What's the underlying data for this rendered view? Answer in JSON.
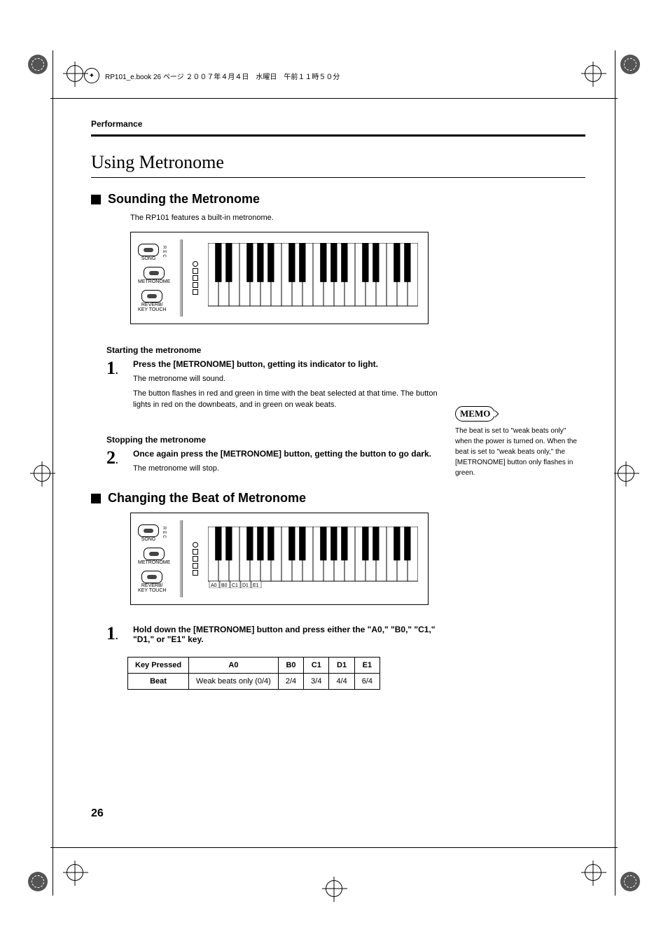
{
  "page": {
    "header_info": "RP101_e.book 26 ページ ２００７年４月４日　水曜日　午前１１時５０分",
    "running_head": "Performance",
    "page_number": "26"
  },
  "h1": "Using Metronome",
  "sect1": {
    "title": "Sounding the Metronome",
    "intro": "The RP101 features a built-in metronome.",
    "panel": {
      "btn1": "SONG",
      "btn2": "METRONOME",
      "btn3": "REVERB/\nKEY TOUCH",
      "rec": "REC"
    },
    "start_heading": "Starting the metronome",
    "step1": {
      "num": "1",
      "instruction": "Press the [METRONOME] button, getting its indicator to light.",
      "text1": "The metronome will sound.",
      "text2": "The button flashes in red and green in time with the beat selected at that time. The button lights in red on the downbeats, and in green on weak beats."
    },
    "stop_heading": "Stopping the metronome",
    "step2": {
      "num": "2",
      "instruction": "Once again press the [METRONOME] button, getting the button to go dark.",
      "text1": "The metronome will stop."
    }
  },
  "memo": {
    "label": "MEMO",
    "text": "The beat is set to \"weak beats only\" when the power is turned on. When the beat is set to \"weak beats only,\" the [METRONOME] button only flashes in green."
  },
  "sect2": {
    "title": "Changing the Beat of Metronome",
    "step1": {
      "num": "1",
      "instruction": "Hold down the [METRONOME] button and press either the \"A0,\" \"B0,\" \"C1,\" \"D1,\" or \"E1\" key."
    },
    "note_labels": [
      "A0",
      "B0",
      "C1",
      "D1",
      "E1"
    ]
  },
  "table": {
    "header": [
      "Key Pressed",
      "A0",
      "B0",
      "C1",
      "D1",
      "E1"
    ],
    "row_label": "Beat",
    "row": [
      "Weak beats only (0/4)",
      "2/4",
      "3/4",
      "4/4",
      "6/4"
    ]
  }
}
